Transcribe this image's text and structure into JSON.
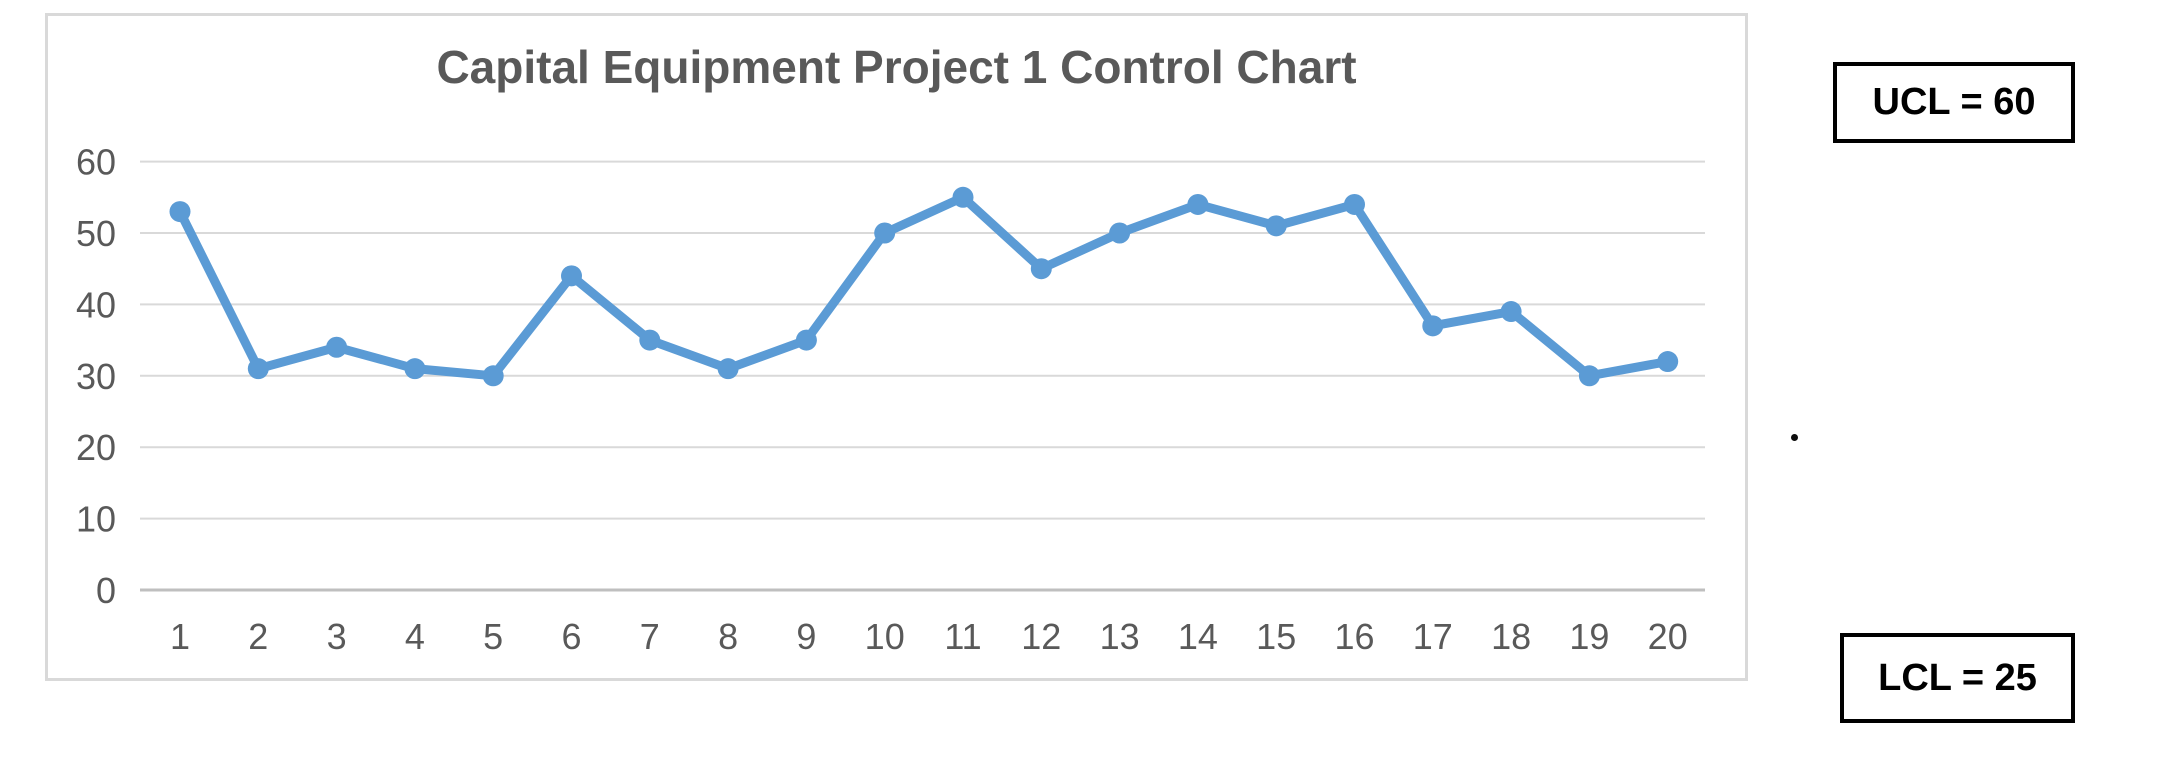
{
  "chart_data": {
    "type": "line",
    "title": "Capital Equipment Project 1 Control Chart",
    "categories": [
      1,
      2,
      3,
      4,
      5,
      6,
      7,
      8,
      9,
      10,
      11,
      12,
      13,
      14,
      15,
      16,
      17,
      18,
      19,
      20
    ],
    "values": [
      53,
      31,
      34,
      31,
      30,
      44,
      35,
      31,
      35,
      50,
      55,
      45,
      50,
      54,
      51,
      54,
      37,
      39,
      30,
      32
    ],
    "series_name": "Capital Equipment Project 1",
    "xlabel": "",
    "ylabel": "",
    "ylim": [
      0,
      60
    ],
    "yticks": [
      0,
      10,
      20,
      30,
      40,
      50,
      60
    ],
    "grid": "horizontal",
    "legend": "none",
    "marker": "circle"
  },
  "annotations": {
    "ucl_label": "UCL = 60",
    "lcl_label": "LCL = 25"
  },
  "colors": {
    "line": "#5B9BD5",
    "marker": "#5B9BD5",
    "title_text": "#595959",
    "tick_text": "#595959",
    "gridline": "#D9D9D9",
    "axis_line": "#BFBFBF",
    "chart_border": "#D9D9D9",
    "annotation_border": "#000000",
    "annotation_text": "#000000",
    "background": "#FFFFFF",
    "dot_artifact": "#0D0D0D"
  },
  "icons": {
    "dot_artifact": "stray-dot"
  }
}
